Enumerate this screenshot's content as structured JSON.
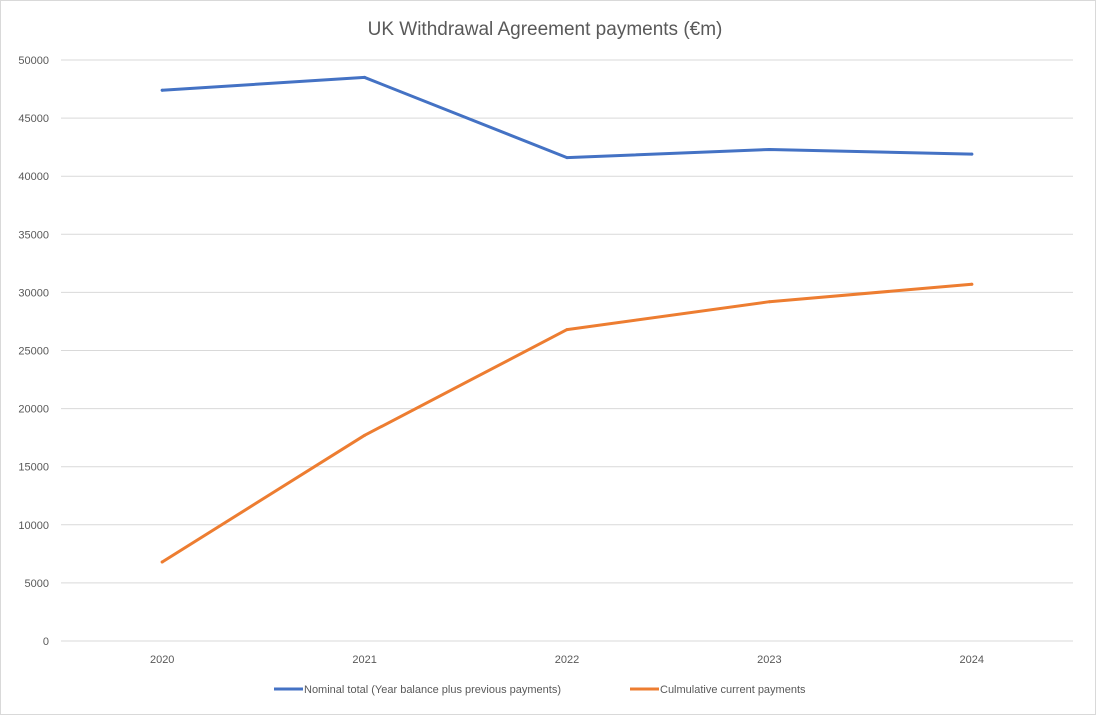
{
  "chart_data": {
    "type": "line",
    "title": "UK Withdrawal Agreement payments (€m)",
    "xlabel": "",
    "ylabel": "",
    "categories": [
      "2020",
      "2021",
      "2022",
      "2023",
      "2024"
    ],
    "ylim": [
      0,
      50000
    ],
    "yticks": [
      0,
      5000,
      10000,
      15000,
      20000,
      25000,
      30000,
      35000,
      40000,
      45000,
      50000
    ],
    "grid": true,
    "legend_position": "bottom",
    "series": [
      {
        "name": "Nominal total (Year balance plus previous payments)",
        "color": "#4472C4",
        "values": [
          47400,
          48500,
          41600,
          42300,
          41900
        ]
      },
      {
        "name": "Culmulative current payments",
        "color": "#ED7D31",
        "values": [
          6800,
          17700,
          26800,
          29200,
          30700
        ]
      }
    ]
  }
}
